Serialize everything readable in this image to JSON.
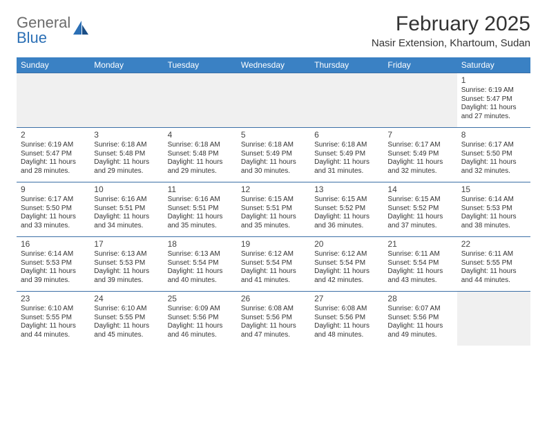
{
  "brand": {
    "word1": "General",
    "word2": "Blue"
  },
  "title": "February 2025",
  "location": "Nasir Extension, Khartoum, Sudan",
  "colors": {
    "headerBar": "#3a81c4",
    "weekBorder": "#3a6ea5",
    "fillerBg": "#f0f0f0",
    "textDark": "#333333",
    "logoGray": "#6b6b6b",
    "logoBlue": "#2b6fb5"
  },
  "daysOfWeek": [
    "Sunday",
    "Monday",
    "Tuesday",
    "Wednesday",
    "Thursday",
    "Friday",
    "Saturday"
  ],
  "startOffset": 6,
  "daysInMonth": 28,
  "entries": {
    "1": {
      "sunrise": "6:19 AM",
      "sunset": "5:47 PM",
      "daylight": "11 hours and 27 minutes."
    },
    "2": {
      "sunrise": "6:19 AM",
      "sunset": "5:47 PM",
      "daylight": "11 hours and 28 minutes."
    },
    "3": {
      "sunrise": "6:18 AM",
      "sunset": "5:48 PM",
      "daylight": "11 hours and 29 minutes."
    },
    "4": {
      "sunrise": "6:18 AM",
      "sunset": "5:48 PM",
      "daylight": "11 hours and 29 minutes."
    },
    "5": {
      "sunrise": "6:18 AM",
      "sunset": "5:49 PM",
      "daylight": "11 hours and 30 minutes."
    },
    "6": {
      "sunrise": "6:18 AM",
      "sunset": "5:49 PM",
      "daylight": "11 hours and 31 minutes."
    },
    "7": {
      "sunrise": "6:17 AM",
      "sunset": "5:49 PM",
      "daylight": "11 hours and 32 minutes."
    },
    "8": {
      "sunrise": "6:17 AM",
      "sunset": "5:50 PM",
      "daylight": "11 hours and 32 minutes."
    },
    "9": {
      "sunrise": "6:17 AM",
      "sunset": "5:50 PM",
      "daylight": "11 hours and 33 minutes."
    },
    "10": {
      "sunrise": "6:16 AM",
      "sunset": "5:51 PM",
      "daylight": "11 hours and 34 minutes."
    },
    "11": {
      "sunrise": "6:16 AM",
      "sunset": "5:51 PM",
      "daylight": "11 hours and 35 minutes."
    },
    "12": {
      "sunrise": "6:15 AM",
      "sunset": "5:51 PM",
      "daylight": "11 hours and 35 minutes."
    },
    "13": {
      "sunrise": "6:15 AM",
      "sunset": "5:52 PM",
      "daylight": "11 hours and 36 minutes."
    },
    "14": {
      "sunrise": "6:15 AM",
      "sunset": "5:52 PM",
      "daylight": "11 hours and 37 minutes."
    },
    "15": {
      "sunrise": "6:14 AM",
      "sunset": "5:53 PM",
      "daylight": "11 hours and 38 minutes."
    },
    "16": {
      "sunrise": "6:14 AM",
      "sunset": "5:53 PM",
      "daylight": "11 hours and 39 minutes."
    },
    "17": {
      "sunrise": "6:13 AM",
      "sunset": "5:53 PM",
      "daylight": "11 hours and 39 minutes."
    },
    "18": {
      "sunrise": "6:13 AM",
      "sunset": "5:54 PM",
      "daylight": "11 hours and 40 minutes."
    },
    "19": {
      "sunrise": "6:12 AM",
      "sunset": "5:54 PM",
      "daylight": "11 hours and 41 minutes."
    },
    "20": {
      "sunrise": "6:12 AM",
      "sunset": "5:54 PM",
      "daylight": "11 hours and 42 minutes."
    },
    "21": {
      "sunrise": "6:11 AM",
      "sunset": "5:54 PM",
      "daylight": "11 hours and 43 minutes."
    },
    "22": {
      "sunrise": "6:11 AM",
      "sunset": "5:55 PM",
      "daylight": "11 hours and 44 minutes."
    },
    "23": {
      "sunrise": "6:10 AM",
      "sunset": "5:55 PM",
      "daylight": "11 hours and 44 minutes."
    },
    "24": {
      "sunrise": "6:10 AM",
      "sunset": "5:55 PM",
      "daylight": "11 hours and 45 minutes."
    },
    "25": {
      "sunrise": "6:09 AM",
      "sunset": "5:56 PM",
      "daylight": "11 hours and 46 minutes."
    },
    "26": {
      "sunrise": "6:08 AM",
      "sunset": "5:56 PM",
      "daylight": "11 hours and 47 minutes."
    },
    "27": {
      "sunrise": "6:08 AM",
      "sunset": "5:56 PM",
      "daylight": "11 hours and 48 minutes."
    },
    "28": {
      "sunrise": "6:07 AM",
      "sunset": "5:56 PM",
      "daylight": "11 hours and 49 minutes."
    }
  },
  "labels": {
    "sunrise": "Sunrise:",
    "sunset": "Sunset:",
    "daylight": "Daylight:"
  }
}
